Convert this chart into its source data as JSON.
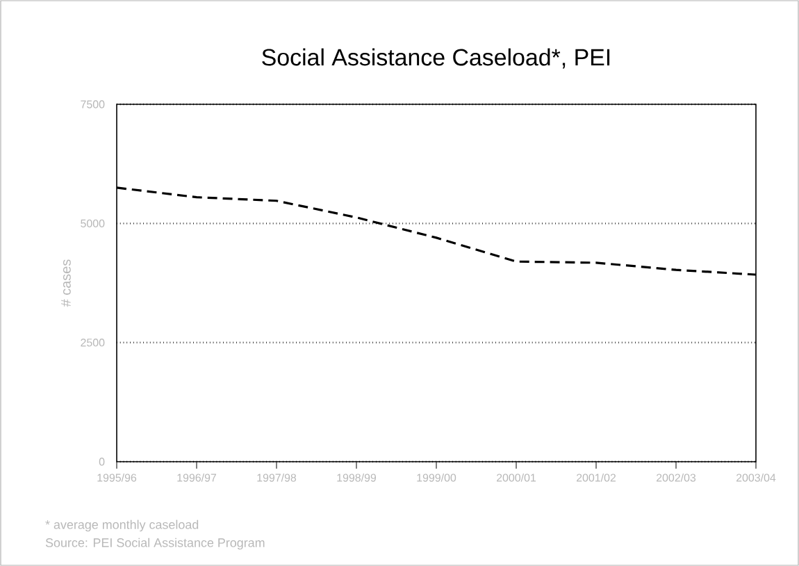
{
  "chart_data": {
    "type": "line",
    "title": "Social Assistance Caseload*, PEI",
    "ylabel": "# cases",
    "categories": [
      "1995/96",
      "1996/97",
      "1997/98",
      "1998/99",
      "1999/00",
      "2000/01",
      "2001/02",
      "2002/03",
      "2003/04"
    ],
    "series": [
      {
        "color": "#000000",
        "values": [
          5750,
          5550,
          5475,
          5125,
          4700,
          4200,
          4175,
          4025,
          3925
        ]
      }
    ],
    "ylim": [
      0,
      7500
    ],
    "yticks": [
      0,
      2500,
      5000,
      7500
    ],
    "grid": "y",
    "line_style": "dashed",
    "marker": "none",
    "annotations": [
      "* average monthly caseload",
      "Source: PEI Social Assistance Program"
    ]
  }
}
